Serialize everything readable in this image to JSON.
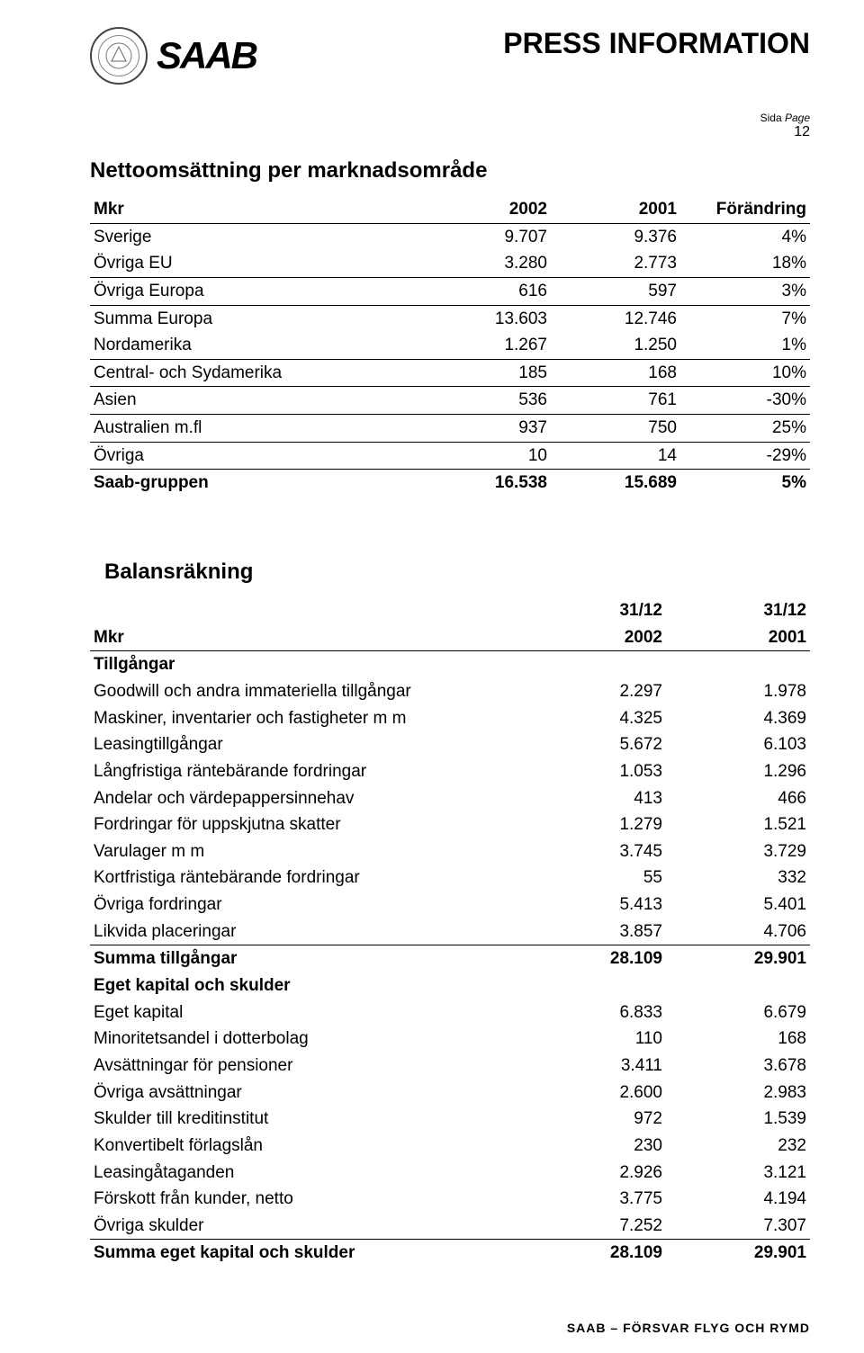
{
  "header": {
    "brand": "SAAB",
    "press": "PRESS INFORMATION",
    "page_label": "Sida",
    "page_label_en": "Page",
    "page_num": "12"
  },
  "table1": {
    "title": "Nettoomsättning per marknadsområde",
    "columns": [
      "Mkr",
      "2002",
      "2001",
      "Förändring"
    ],
    "rows": [
      {
        "label": "Sverige",
        "c1": "9.707",
        "c2": "9.376",
        "c3": "4%",
        "border": false
      },
      {
        "label": "Övriga EU",
        "c1": "3.280",
        "c2": "2.773",
        "c3": "18%",
        "border": true
      },
      {
        "label": "Övriga Europa",
        "c1": "616",
        "c2": "597",
        "c3": "3%",
        "border": true
      },
      {
        "label": "Summa Europa",
        "c1": "13.603",
        "c2": "12.746",
        "c3": "7%",
        "border": false
      },
      {
        "label": "Nordamerika",
        "c1": "1.267",
        "c2": "1.250",
        "c3": "1%",
        "border": true
      },
      {
        "label": "Central- och Sydamerika",
        "c1": "185",
        "c2": "168",
        "c3": "10%",
        "border": true
      },
      {
        "label": "Asien",
        "c1": "536",
        "c2": "761",
        "c3": "-30%",
        "border": true
      },
      {
        "label": "Australien m.fl",
        "c1": "937",
        "c2": "750",
        "c3": "25%",
        "border": true
      },
      {
        "label": "Övriga",
        "c1": "10",
        "c2": "14",
        "c3": "-29%",
        "border": true
      }
    ],
    "total": {
      "label": "Saab-gruppen",
      "c1": "16.538",
      "c2": "15.689",
      "c3": "5%"
    }
  },
  "table2": {
    "title": "Balansräkning",
    "hdr_mkr": "Mkr",
    "hdr_c1a": "31/12",
    "hdr_c1b": "2002",
    "hdr_c2a": "31/12",
    "hdr_c2b": "2001",
    "section1": "Tillgångar",
    "rows1": [
      {
        "label": "Goodwill och andra immateriella tillgångar",
        "c1": "2.297",
        "c2": "1.978"
      },
      {
        "label": "Maskiner, inventarier och fastigheter m m",
        "c1": "4.325",
        "c2": "4.369"
      },
      {
        "label": "Leasingtillgångar",
        "c1": "5.672",
        "c2": "6.103"
      },
      {
        "label": "Långfristiga räntebärande fordringar",
        "c1": "1.053",
        "c2": "1.296"
      },
      {
        "label": "Andelar och värdepappersinnehav",
        "c1": "413",
        "c2": "466"
      },
      {
        "label": "Fordringar för uppskjutna skatter",
        "c1": "1.279",
        "c2": "1.521"
      },
      {
        "label": "Varulager m m",
        "c1": "3.745",
        "c2": "3.729"
      },
      {
        "label": "Kortfristiga räntebärande fordringar",
        "c1": "55",
        "c2": "332"
      },
      {
        "label": "Övriga fordringar",
        "c1": "5.413",
        "c2": "5.401"
      }
    ],
    "lastrow1": {
      "label": "Likvida placeringar",
      "c1": "3.857",
      "c2": "4.706"
    },
    "total1": {
      "label": "Summa tillgångar",
      "c1": "28.109",
      "c2": "29.901"
    },
    "section2": "Eget kapital och skulder",
    "rows2": [
      {
        "label": "Eget kapital",
        "c1": "6.833",
        "c2": "6.679"
      },
      {
        "label": "Minoritetsandel i dotterbolag",
        "c1": "110",
        "c2": "168"
      },
      {
        "label": "Avsättningar för pensioner",
        "c1": "3.411",
        "c2": "3.678"
      },
      {
        "label": "Övriga avsättningar",
        "c1": "2.600",
        "c2": "2.983"
      },
      {
        "label": "Skulder till kreditinstitut",
        "c1": "972",
        "c2": "1.539"
      },
      {
        "label": "Konvertibelt förlagslån",
        "c1": "230",
        "c2": "232"
      },
      {
        "label": "Leasingåtaganden",
        "c1": "2.926",
        "c2": "3.121"
      },
      {
        "label": "Förskott från kunder, netto",
        "c1": "3.775",
        "c2": "4.194"
      }
    ],
    "lastrow2": {
      "label": "Övriga skulder",
      "c1": "7.252",
      "c2": "7.307"
    },
    "total2": {
      "label": "Summa eget kapital och skulder",
      "c1": "28.109",
      "c2": "29.901"
    }
  },
  "footer": "SAAB – FÖRSVAR  FLYG OCH RYMD"
}
